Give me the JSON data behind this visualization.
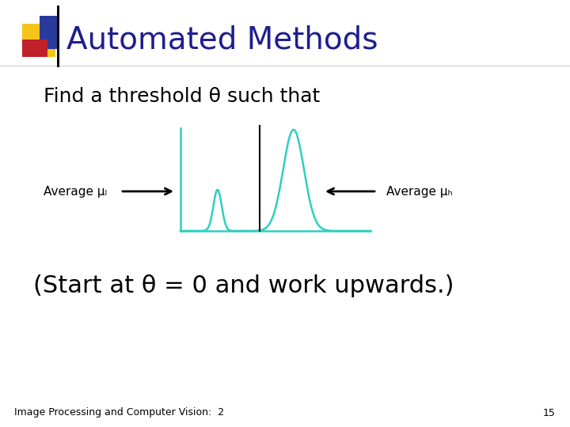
{
  "title": "Automated Methods",
  "subtitle": "Find a threshold θ such that",
  "bottom_left": "Image Processing and Computer Vision:  2",
  "bottom_right": "15",
  "start_text": "(Start at θ = 0 and work upwards.)",
  "average_l": "Average μₗ",
  "average_h": "Average μₕ",
  "title_color": "#1e1e8f",
  "curve_color": "#2ecfc0",
  "arrow_color": "#000000",
  "header_yellow": "#f5c518",
  "header_blue": "#2a3a9c",
  "header_red": "#c0202a",
  "background": "#ffffff",
  "fig_width": 7.2,
  "fig_height": 5.4,
  "dpi": 100
}
